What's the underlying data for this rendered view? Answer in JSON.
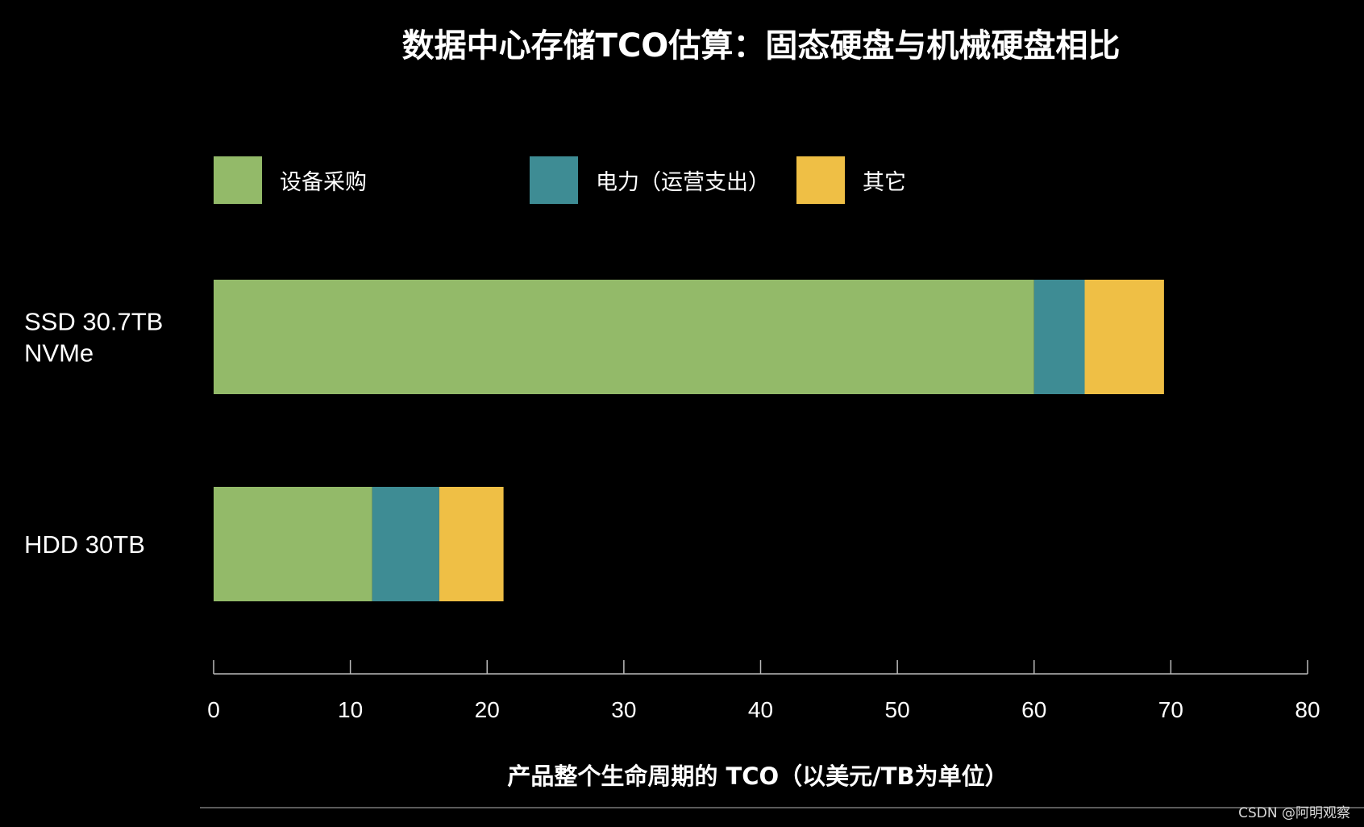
{
  "chart_data": {
    "type": "bar",
    "orientation": "horizontal",
    "stacked": true,
    "title": "数据中心存储TCO估算：固态硬盘与机械硬盘相比",
    "xlabel": "产品整个生命周期的 TCO（以美元/TB为单位）",
    "ylabel": "",
    "categories": [
      [
        "SSD 30.7TB",
        "NVMe"
      ],
      [
        "HDD 30TB"
      ]
    ],
    "series": [
      {
        "name": "设备采购",
        "color": "#93ba69",
        "values": [
          60,
          11.6
        ]
      },
      {
        "name": "电力（运营支出）",
        "color": "#3e8c94",
        "values": [
          3.7,
          4.9
        ]
      },
      {
        "name": "其它",
        "color": "#efbf45",
        "values": [
          5.8,
          4.7
        ]
      }
    ],
    "xlim": [
      0,
      80
    ],
    "xticks": [
      "0",
      "10",
      "20",
      "30",
      "40",
      "50",
      "60",
      "70",
      "80"
    ],
    "grid": false,
    "legend_position": "top"
  },
  "watermark": "CSDN @阿明观察"
}
